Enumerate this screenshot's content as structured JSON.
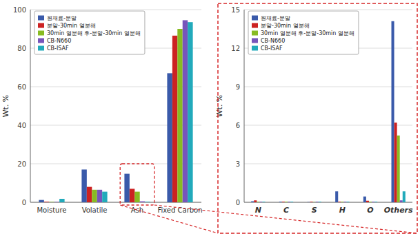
{
  "chart_data": [
    {
      "type": "bar",
      "y_label": "Wt. %",
      "categories": [
        "Moisture",
        "Volatile",
        "Ash",
        "Fixed Carbon"
      ],
      "series": [
        {
          "name": "원재료-분말",
          "color": "#3a5aaa",
          "values": [
            1.2,
            17.0,
            14.8,
            67.0
          ]
        },
        {
          "name": "분말-30min 열분해",
          "color": "#cc2222",
          "values": [
            0.3,
            8.0,
            7.0,
            86.5
          ]
        },
        {
          "name": "30min 열분해 후-분말-30min 열분해",
          "color": "#88bb22",
          "values": [
            0.2,
            6.5,
            5.5,
            90.0
          ]
        },
        {
          "name": "CB-N660",
          "color": "#7755bb",
          "values": [
            0.2,
            6.5,
            0.5,
            94.5
          ]
        },
        {
          "name": "CB-ISAF",
          "color": "#22aabb",
          "values": [
            1.8,
            5.5,
            0.3,
            93.5
          ]
        }
      ],
      "ylim": [
        0,
        100
      ],
      "yticks": [
        0,
        20,
        40,
        60,
        80,
        100
      ],
      "grid": true,
      "legend": "upper-left"
    },
    {
      "type": "bar",
      "y_label": "Wt. %",
      "categories": [
        "N",
        "C",
        "S",
        "H",
        "O",
        "Others"
      ],
      "series": [
        {
          "name": "원재료-분말",
          "color": "#3a5aaa",
          "values": [
            0.08,
            0.05,
            0.02,
            0.85,
            0.45,
            14.1
          ]
        },
        {
          "name": "분말-30min 열분해",
          "color": "#cc2222",
          "values": [
            0.15,
            0.05,
            0.05,
            0.05,
            0.12,
            6.2
          ]
        },
        {
          "name": "30min 열분해 후-분말-30min 열분해",
          "color": "#88bb22",
          "values": [
            0.05,
            0.05,
            0.02,
            0.05,
            0.05,
            5.2
          ]
        },
        {
          "name": "CB-N660",
          "color": "#7755bb",
          "values": [
            0.05,
            0.05,
            0.05,
            0.05,
            0.05,
            0.15
          ]
        },
        {
          "name": "CB-ISAF",
          "color": "#22aabb",
          "values": [
            0.05,
            0.05,
            0.05,
            0.05,
            0.05,
            0.85
          ]
        }
      ],
      "ylim": [
        0,
        15
      ],
      "yticks": [
        0,
        3,
        6,
        9,
        12,
        15
      ],
      "grid": true,
      "legend": "upper-left"
    }
  ]
}
